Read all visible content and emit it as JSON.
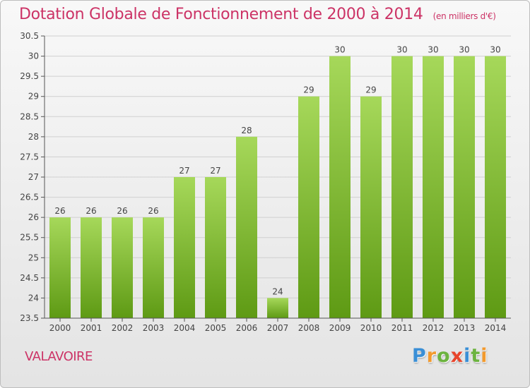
{
  "title": "Dotation Globale de Fonctionnement de 2000 à 2014",
  "unit_label": "(en milliers d'€)",
  "commune": "VALAVOIRE",
  "logo": {
    "letters": [
      "P",
      "r",
      "o",
      "x",
      "i",
      "t",
      "i"
    ],
    "colors": [
      "#3a8fd6",
      "#f29a2e",
      "#6cb33f",
      "#e8452c",
      "#3a8fd6",
      "#6cb33f",
      "#f29a2e"
    ]
  },
  "colors": {
    "title": "#cc3366",
    "bar_top": "#a6d85a",
    "bar_bottom": "#5e9a14",
    "axis": "#555555",
    "grid": "#d0d0d0"
  },
  "chart_data": {
    "type": "bar",
    "categories": [
      "2000",
      "2001",
      "2002",
      "2003",
      "2004",
      "2005",
      "2006",
      "2007",
      "2008",
      "2009",
      "2010",
      "2011",
      "2012",
      "2013",
      "2014"
    ],
    "values": [
      26,
      26,
      26,
      26,
      27,
      27,
      28,
      24,
      29,
      30,
      29,
      30,
      30,
      30,
      30
    ],
    "data_labels": [
      "26",
      "26",
      "26",
      "26",
      "27",
      "27",
      "28",
      "24",
      "29",
      "30",
      "29",
      "30",
      "30",
      "30",
      "30"
    ],
    "ylim": [
      23.5,
      30.5
    ],
    "yticks": [
      "23.5",
      "24",
      "24.5",
      "25",
      "25.5",
      "26",
      "26.5",
      "27",
      "27.5",
      "28",
      "28.5",
      "29",
      "29.5",
      "30",
      "30.5"
    ],
    "grid": true,
    "xlabel": "",
    "ylabel": ""
  }
}
